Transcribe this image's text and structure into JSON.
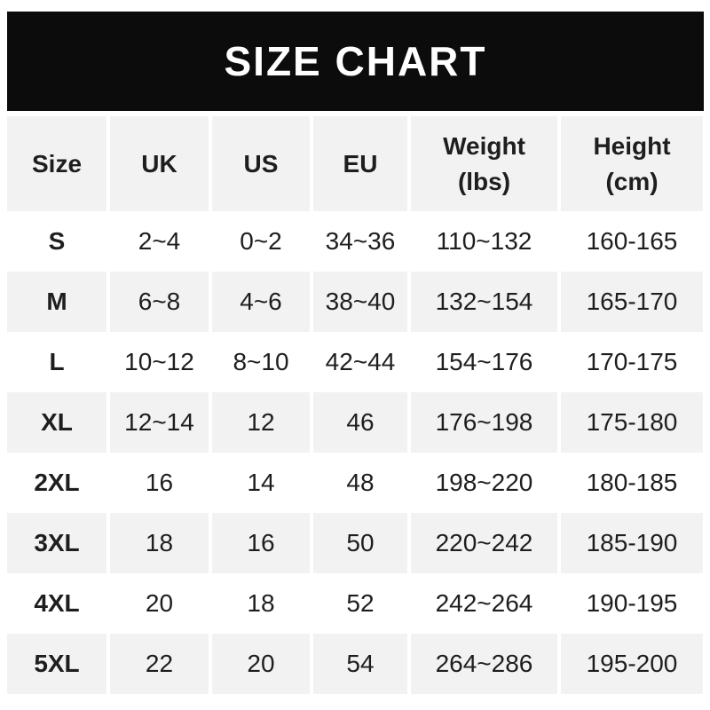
{
  "chart_data": {
    "type": "table",
    "title": "SIZE CHART",
    "columns": [
      "Size",
      "UK",
      "US",
      "EU",
      "Weight (lbs)",
      "Height (cm)"
    ],
    "rows": [
      [
        "S",
        "2~4",
        "0~2",
        "34~36",
        "110~132",
        "160-165"
      ],
      [
        "M",
        "6~8",
        "4~6",
        "38~40",
        "132~154",
        "165-170"
      ],
      [
        "L",
        "10~12",
        "8~10",
        "42~44",
        "154~176",
        "170-175"
      ],
      [
        "XL",
        "12~14",
        "12",
        "46",
        "176~198",
        "175-180"
      ],
      [
        "2XL",
        "16",
        "14",
        "48",
        "198~220",
        "180-185"
      ],
      [
        "3XL",
        "18",
        "16",
        "50",
        "220~242",
        "185-190"
      ],
      [
        "4XL",
        "20",
        "18",
        "52",
        "242~264",
        "190-195"
      ],
      [
        "5XL",
        "22",
        "20",
        "54",
        "264~286",
        "195-200"
      ]
    ],
    "layout": {
      "header_background": "#f2f2f2",
      "alternating_row_background": "#f2f2f2",
      "row_background": "#ffffff",
      "column_separator": "#ffffff"
    }
  },
  "banner": {
    "title": "SIZE CHART",
    "background": "#0c0c0c",
    "text_color": "#ffffff"
  },
  "header": {
    "columns": [
      {
        "id": "size",
        "lines": [
          "Size"
        ]
      },
      {
        "id": "uk",
        "lines": [
          "UK"
        ]
      },
      {
        "id": "us",
        "lines": [
          "US"
        ]
      },
      {
        "id": "eu",
        "lines": [
          "EU"
        ]
      },
      {
        "id": "weight",
        "lines": [
          "Weight",
          "(lbs)"
        ]
      },
      {
        "id": "height",
        "lines": [
          "Height",
          "(cm)"
        ]
      }
    ]
  },
  "colors": {
    "text": "#1e1e1e",
    "row_alt_bg": "#f2f2f2",
    "banner_bg": "#0c0c0c"
  }
}
